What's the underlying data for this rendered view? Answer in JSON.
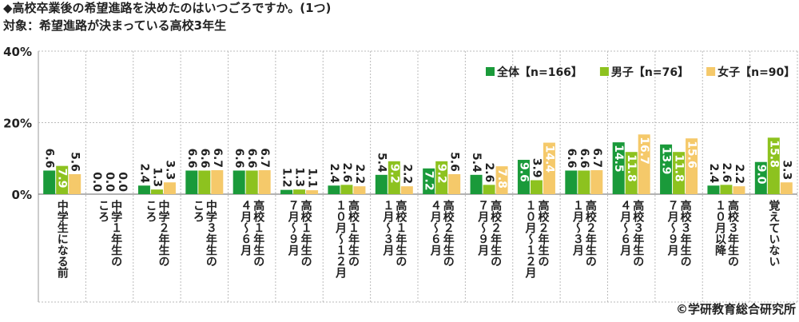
{
  "title": "◆高校卒業後の希望進路を決めたのはいつごろですか。(1つ)",
  "subtitle": "対象：希望進路が決まっている高校3年生",
  "source": "©学研教育総合研究所",
  "chart_data": {
    "type": "bar",
    "categories": [
      "中学生になる前",
      "中学１年生の\nころ",
      "中学２年生の\nころ",
      "中学３年生の\nころ",
      "高校１年生の\n４月～６月",
      "高校１年生の\n７月～９月",
      "高校１年生の\n１０月～１２月",
      "高校１年生の\n１月～３月",
      "高校２年生の\n４月～６月",
      "高校２年生の\n７月～９月",
      "高校２年生の\n１０月～１２月",
      "高校２年生の\n１月～３月",
      "高校３年生の\n４月～６月",
      "高校３年生の\n７月～９月",
      "高校３年生の\n１０月以降",
      "覚えていない"
    ],
    "series": [
      {
        "name": "全体【n=166】",
        "color": "#1a9a3a",
        "values": [
          6.6,
          0,
          2.4,
          6.6,
          6.6,
          1.2,
          2.4,
          5.4,
          7.2,
          5.4,
          9.6,
          6.6,
          14.5,
          13.9,
          2.4,
          9.0
        ],
        "value_labels": [
          "6.6",
          "0.0",
          "2.4",
          "6.6",
          "6.6",
          "1.2",
          "2.4",
          "5.4",
          "7.2",
          "5.4",
          "9.6",
          "6.6",
          "14.5",
          "13.9",
          "2.4",
          "9.0"
        ]
      },
      {
        "name": "男子【n=76】",
        "color": "#8dc21f",
        "values": [
          7.9,
          0,
          1.3,
          6.6,
          6.6,
          1.3,
          2.6,
          9.2,
          9.2,
          2.6,
          3.9,
          6.6,
          11.8,
          11.8,
          2.6,
          15.8
        ],
        "value_labels": [
          "7.9",
          "0.0",
          "1.3",
          "6.6",
          "6.6",
          "1.3",
          "2.6",
          "9.2",
          "9.2",
          "2.6",
          "3.9",
          "6.6",
          "11.8",
          "11.8",
          "2.6",
          "15.8"
        ]
      },
      {
        "name": "女子【n=90】",
        "color": "#f5c96a",
        "values": [
          5.6,
          0,
          3.3,
          6.7,
          6.7,
          1.1,
          2.2,
          2.2,
          5.6,
          7.8,
          14.4,
          6.7,
          16.7,
          15.6,
          2.2,
          3.3
        ],
        "value_labels": [
          "5.6",
          "0.0",
          "3.3",
          "6.7",
          "6.7",
          "1.1",
          "2.2",
          "2.2",
          "5.6",
          "7.8",
          "14.4",
          "6.7",
          "16.7",
          "15.6",
          "2.2",
          "3.3"
        ]
      }
    ],
    "ylim": [
      0,
      40
    ],
    "yticks": [
      {
        "value": 0,
        "label": "0%"
      },
      {
        "value": 20,
        "label": "20%"
      },
      {
        "value": 40,
        "label": "40%"
      }
    ],
    "grid": true,
    "legend": "top-right"
  }
}
